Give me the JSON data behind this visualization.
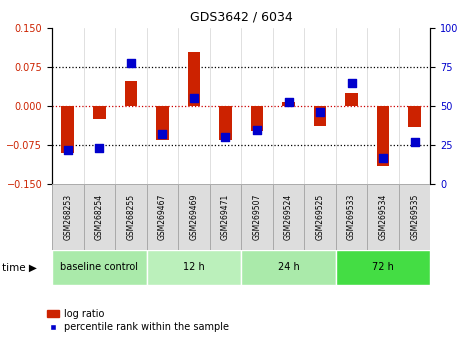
{
  "title": "GDS3642 / 6034",
  "samples": [
    "GSM268253",
    "GSM268254",
    "GSM268255",
    "GSM269467",
    "GSM269469",
    "GSM269471",
    "GSM269507",
    "GSM269524",
    "GSM269525",
    "GSM269533",
    "GSM269534",
    "GSM269535"
  ],
  "log_ratio": [
    -0.09,
    -0.025,
    0.048,
    -0.065,
    0.105,
    -0.065,
    -0.048,
    0.008,
    -0.038,
    0.025,
    -0.115,
    -0.04
  ],
  "percentile": [
    22,
    23,
    78,
    32,
    55,
    30,
    35,
    53,
    46,
    65,
    17,
    27
  ],
  "ylim_left": [
    -0.15,
    0.15
  ],
  "ylim_right": [
    0,
    100
  ],
  "yticks_left": [
    -0.15,
    -0.075,
    0,
    0.075,
    0.15
  ],
  "yticks_right": [
    0,
    25,
    50,
    75,
    100
  ],
  "groups": [
    {
      "label": "baseline control",
      "start": 0,
      "end": 3,
      "color": "#aaeaaa"
    },
    {
      "label": "12 h",
      "start": 3,
      "end": 6,
      "color": "#bbf0bb"
    },
    {
      "label": "24 h",
      "start": 6,
      "end": 9,
      "color": "#aaeaaa"
    },
    {
      "label": "72 h",
      "start": 9,
      "end": 12,
      "color": "#44dd44"
    }
  ],
  "bar_color": "#cc2200",
  "percentile_color": "#0000cc",
  "bar_width": 0.4,
  "percentile_marker_size": 40,
  "zero_line_color": "#cc0000",
  "dotted_line_color": "#000000",
  "tick_label_color_left": "#cc2200",
  "tick_label_color_right": "#0000cc",
  "legend_log_ratio": "log ratio",
  "legend_percentile": "percentile rank within the sample",
  "sample_box_color": "#dddddd",
  "sample_box_edge": "#aaaaaa"
}
